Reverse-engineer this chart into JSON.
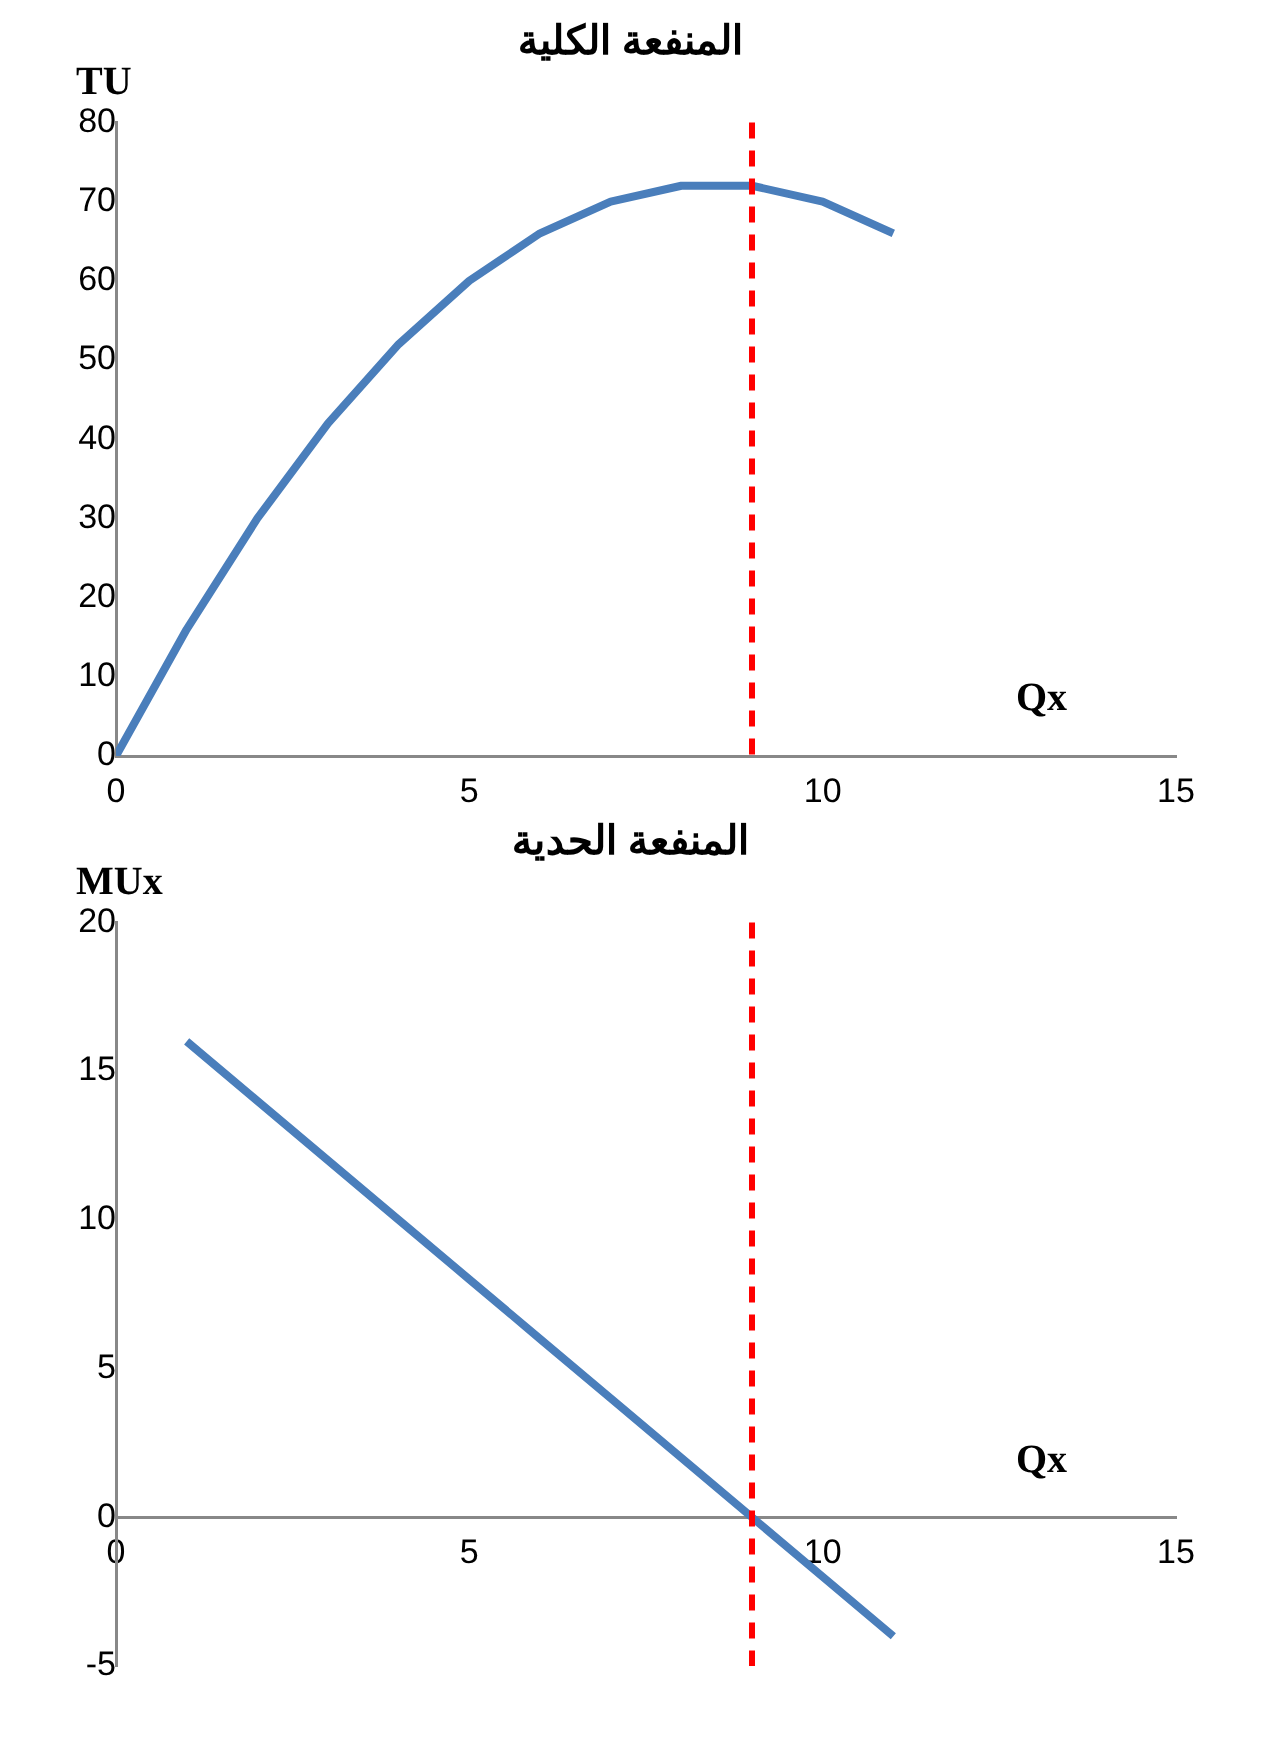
{
  "chart_data": [
    {
      "type": "line",
      "title": "المنفعة الكلية",
      "ylabel": "TU",
      "xlabel": "Qx",
      "x": [
        0,
        1,
        2,
        3,
        4,
        5,
        6,
        7,
        8,
        9,
        10,
        11
      ],
      "series": [
        {
          "color": "#4a7ebb",
          "values": [
            0,
            16,
            30,
            42,
            52,
            60,
            66,
            70,
            72,
            72,
            70,
            66
          ]
        }
      ],
      "xlim": [
        0,
        15
      ],
      "xticks": [
        0,
        5,
        10,
        15
      ],
      "ylim": [
        0,
        80
      ],
      "yticks": [
        0,
        10,
        20,
        30,
        40,
        50,
        60,
        70,
        80
      ],
      "ref_lines": [
        {
          "axis": "x",
          "value": 9,
          "color": "#ff0000",
          "line_style": "dashed"
        }
      ],
      "grid": false,
      "legend": false,
      "marker": "none",
      "line_style": "solid"
    },
    {
      "type": "line",
      "title": "المنفعة الحدية",
      "ylabel": "MUx",
      "xlabel": "Qx",
      "x": [
        1,
        2,
        3,
        4,
        5,
        6,
        7,
        8,
        9,
        10,
        11
      ],
      "series": [
        {
          "color": "#4a7ebb",
          "values": [
            16,
            14,
            12,
            10,
            8,
            6,
            4,
            2,
            0,
            -2,
            -4
          ]
        }
      ],
      "xlim": [
        0,
        15
      ],
      "xticks": [
        0,
        5,
        10,
        15
      ],
      "ylim": [
        -5,
        20
      ],
      "yticks": [
        -5,
        0,
        5,
        10,
        15,
        20
      ],
      "ref_lines": [
        {
          "axis": "x",
          "value": 9,
          "color": "#ff0000",
          "line_style": "dashed"
        }
      ],
      "grid": false,
      "legend": false,
      "marker": "none",
      "line_style": "solid"
    }
  ]
}
